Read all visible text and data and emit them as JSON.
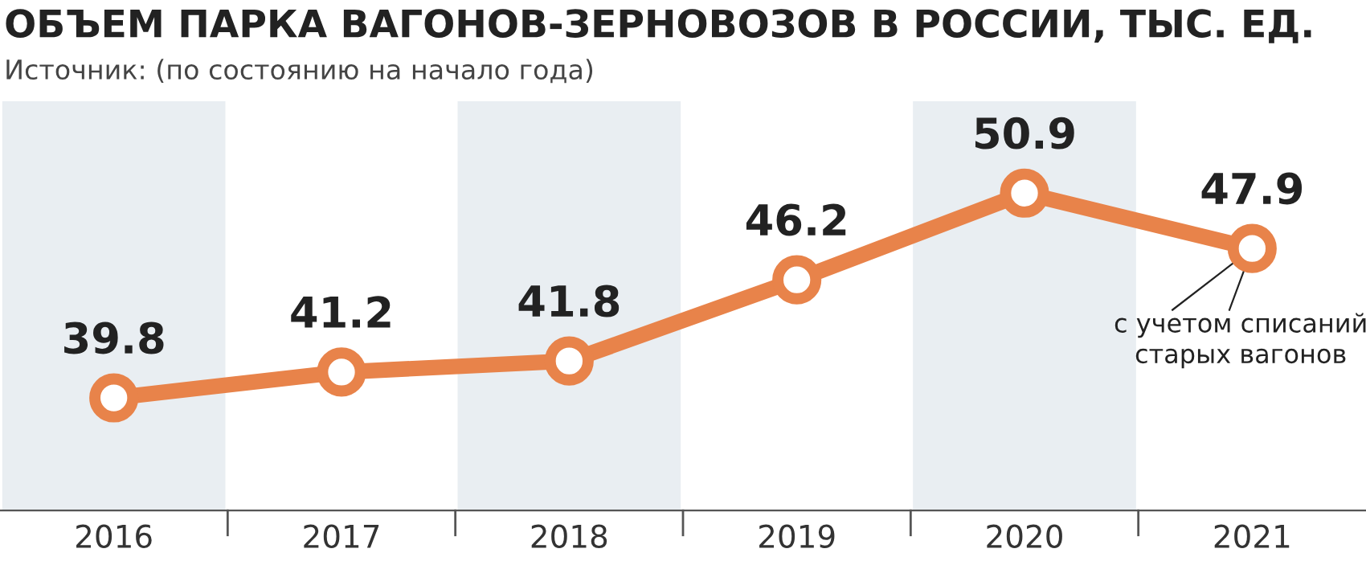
{
  "chart_data": {
    "type": "line",
    "title": "ОБЪЕМ ПАРКА ВАГОНОВ-ЗЕРНОВОЗОВ В РОССИИ, ТЫС. ЕД.",
    "subtitle": "Источник: (по состоянию на начало года)",
    "categories": [
      "2016",
      "2017",
      "2018",
      "2019",
      "2020",
      "2021"
    ],
    "series": [
      {
        "color": "#e8834a",
        "values": [
          39.8,
          41.2,
          41.8,
          46.2,
          50.9,
          47.9
        ]
      }
    ],
    "data_labels": true,
    "marker": "circle",
    "line_style": "solid",
    "grid": false,
    "legend": false,
    "tick_labels": "x",
    "annotations": [
      {
        "text": "с учетом списаний\nстарых вагонов",
        "x": "2021",
        "y": 47.9
      }
    ]
  }
}
